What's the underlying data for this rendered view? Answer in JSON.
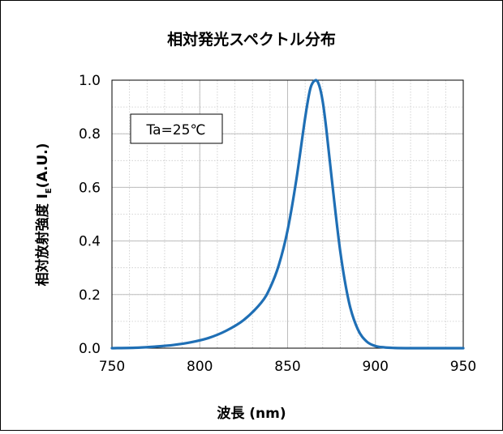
{
  "chart_data": {
    "type": "line",
    "title": "相対発光スペクトル分布",
    "xlabel": "波長 (nm)",
    "ylabel_main": "相対放射強度 I",
    "ylabel_sub": "E",
    "ylabel_unit": "(A.U.)",
    "annotation": "Ta=25℃",
    "xlim": [
      750,
      950
    ],
    "ylim": [
      0,
      1.0
    ],
    "x_major_ticks": [
      750,
      800,
      850,
      900,
      950
    ],
    "x_tick_labels": [
      "750",
      "800",
      "850",
      "900",
      "950"
    ],
    "y_major_ticks": [
      0,
      0.2,
      0.4,
      0.6,
      0.8,
      1.0
    ],
    "y_tick_labels": [
      "0.0",
      "0.2",
      "0.4",
      "0.6",
      "0.8",
      "1.0"
    ],
    "x_minor_step": 10,
    "y_minor_step": 0.1,
    "grid": true,
    "line_color": "#1f6fb5",
    "series": [
      {
        "x": [
          750,
          765,
          775,
          785,
          795,
          805,
          815,
          825,
          835,
          840,
          845,
          850,
          855,
          860,
          863,
          866,
          868,
          870,
          872,
          875,
          880,
          885,
          890,
          895,
          900,
          905,
          910,
          920,
          950
        ],
        "y": [
          0,
          0.002,
          0.006,
          0.012,
          0.022,
          0.038,
          0.065,
          0.105,
          0.17,
          0.225,
          0.31,
          0.44,
          0.63,
          0.86,
          0.97,
          1.0,
          0.98,
          0.92,
          0.82,
          0.64,
          0.36,
          0.17,
          0.07,
          0.025,
          0.008,
          0.003,
          0.001,
          0,
          0
        ]
      }
    ]
  }
}
